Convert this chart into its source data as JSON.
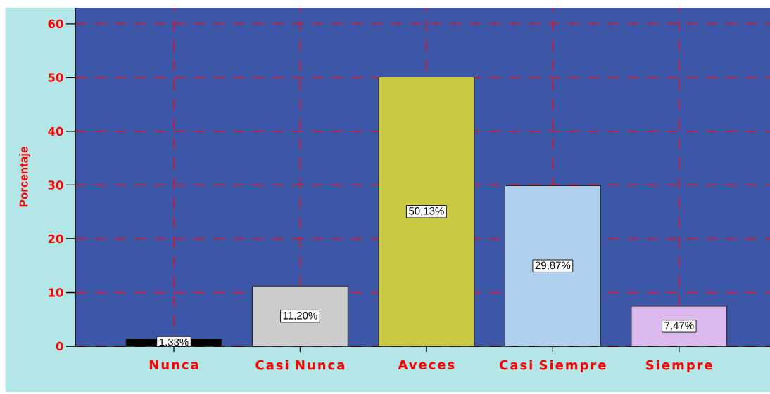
{
  "chart_data": {
    "type": "bar",
    "ylabel": "Porcentaje",
    "categories": [
      "Nunca",
      "Casi Nunca",
      "Aveces",
      "Casi Siempre",
      "Siempre"
    ],
    "values": [
      1.33,
      11.2,
      50.13,
      29.87,
      7.47
    ],
    "colors": [
      "#000000",
      "#cccccc",
      "#c8c842",
      "#afd0ee",
      "#dcbaf0"
    ],
    "value_labels": [
      "1,33%",
      "11,20%",
      "50,13%",
      "29,87%",
      "7,47%"
    ],
    "ylim": [
      0,
      63
    ],
    "yticks": [
      0,
      10,
      20,
      30,
      40,
      50,
      60
    ],
    "grid": true
  }
}
